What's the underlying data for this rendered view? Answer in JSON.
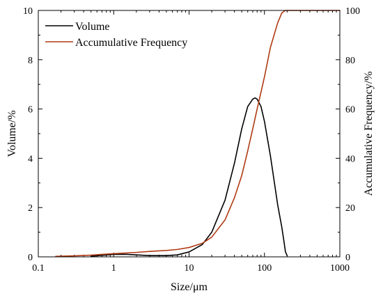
{
  "chart_data": {
    "type": "line",
    "xlabel": "Size/μm",
    "ylabel_left": "Volume/%",
    "ylabel_right": "Accumulative Frequency/%",
    "x_scale": "log",
    "xlim": [
      0.1,
      1000
    ],
    "ylim_left": [
      0,
      10
    ],
    "ylim_right": [
      0,
      100
    ],
    "x_ticks": [
      {
        "value": 0.1,
        "label": "0.1"
      },
      {
        "value": 1,
        "label": "1"
      },
      {
        "value": 10,
        "label": "10"
      },
      {
        "value": 100,
        "label": "100"
      },
      {
        "value": 1000,
        "label": "1000"
      }
    ],
    "y_ticks_left": [
      "0",
      "2",
      "4",
      "6",
      "8",
      "10"
    ],
    "y_ticks_right": [
      "0",
      "20",
      "40",
      "60",
      "80",
      "100"
    ],
    "legend_position": "top-left",
    "grid": false,
    "series": [
      {
        "name": "Volume",
        "axis": "left",
        "color": "#000000",
        "x": [
          0.5,
          0.7,
          1,
          1.5,
          2,
          3,
          5,
          7,
          10,
          15,
          20,
          30,
          40,
          50,
          60,
          70,
          75,
          80,
          90,
          100,
          120,
          150,
          170,
          180,
          190,
          200
        ],
        "y": [
          0.03,
          0.06,
          0.1,
          0.1,
          0.08,
          0.05,
          0.05,
          0.08,
          0.2,
          0.5,
          1.0,
          2.3,
          3.8,
          5.2,
          6.1,
          6.4,
          6.45,
          6.4,
          6.1,
          5.5,
          4.1,
          2.1,
          1.2,
          0.7,
          0.2,
          0.05
        ]
      },
      {
        "name": "Accumulative Frequency",
        "axis": "right",
        "color": "#b03a12",
        "x": [
          0.17,
          0.3,
          0.5,
          0.7,
          1,
          2,
          3,
          5,
          7,
          10,
          15,
          20,
          30,
          40,
          50,
          60,
          70,
          80,
          100,
          120,
          150,
          170,
          190,
          200,
          300,
          500,
          1000
        ],
        "y": [
          0.2,
          0.4,
          0.7,
          1.0,
          1.3,
          1.8,
          2.2,
          2.6,
          3.0,
          3.8,
          5.5,
          8,
          15,
          24,
          33,
          43,
          52,
          60,
          73,
          85,
          95,
          99,
          100,
          100,
          100,
          100,
          100
        ]
      }
    ]
  }
}
